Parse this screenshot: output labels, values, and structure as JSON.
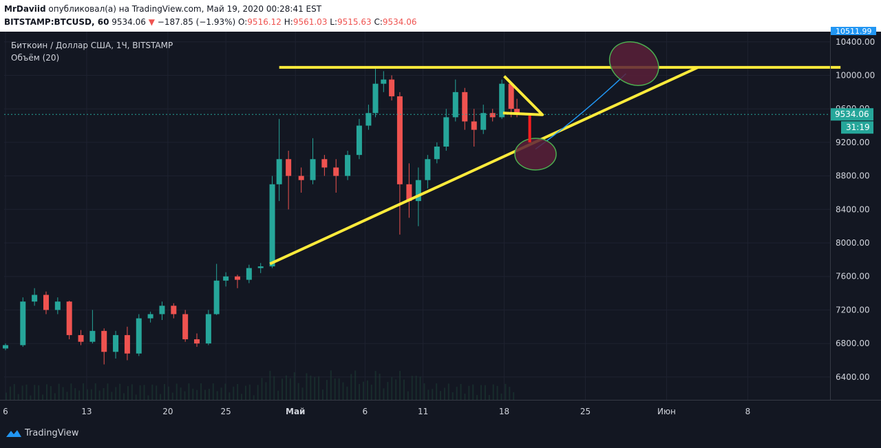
{
  "header": {
    "author": "MrDaviid",
    "published_text": "опубликовал(а) на TradingView.com, Май 19, 2020 00:28:41 EST",
    "symbol": "BITSTAMP:BTCUSD, 60",
    "last_price": "9534.06",
    "change": "−187.85 (−1.93%)",
    "o_label": "O:",
    "o_value": "9516.12",
    "h_label": "H:",
    "h_value": "9561.03",
    "l_label": "L:",
    "l_value": "9515.63",
    "c_label": "C:",
    "c_value": "9534.06"
  },
  "legend": {
    "title": "Биткоин / Доллар США, 1Ч, BITSTAMP",
    "volume": "Объём (20)"
  },
  "price_axis": {
    "top_badge": "10511.99",
    "current_price": "9534.06",
    "countdown": "31:19"
  },
  "footer": {
    "brand": "TradingView"
  },
  "colors": {
    "background": "#131722",
    "up_candle": "#26a69a",
    "down_candle": "#ef5350",
    "trendline": "#ffeb3b",
    "ellipse_stroke": "#4caf50",
    "ellipse_fill": "#5a2038",
    "forecast_curve": "#2196f3",
    "arrow": "#ff1f1f",
    "price_line": "#26a69a",
    "top_badge": "#2196f3"
  },
  "chart_data": {
    "type": "candlestick",
    "title": "Биткоин / Доллар США, 1Ч, BITSTAMP",
    "xlabel": "",
    "ylabel": "",
    "x_tick_labels": [
      "6",
      "13",
      "20",
      "25",
      "Май",
      "6",
      "11",
      "18",
      "25",
      "Июн",
      "8"
    ],
    "x_tick_days": [
      6,
      13,
      20,
      25,
      31,
      37,
      42,
      49,
      56,
      63,
      70
    ],
    "y_ticks": [
      6400,
      6800,
      7200,
      7600,
      8000,
      8400,
      8800,
      9200,
      9600,
      10000,
      10400
    ],
    "y_tick_labels": [
      "6400.00",
      "6800.00",
      "7200.00",
      "7600.00",
      "8000.00",
      "8400.00",
      "8800.00",
      "9200.00",
      "9600.00",
      "10000.00",
      "10400.00"
    ],
    "current_price": 9534.06,
    "series": [
      {
        "name": "BTCUSD",
        "points": [
          {
            "day": 6.0,
            "open": 6740,
            "high": 6800,
            "low": 6720,
            "close": 6780
          },
          {
            "day": 7.5,
            "open": 6780,
            "high": 7350,
            "low": 6760,
            "close": 7300
          },
          {
            "day": 8.5,
            "open": 7300,
            "high": 7460,
            "low": 7250,
            "close": 7380
          },
          {
            "day": 9.5,
            "open": 7380,
            "high": 7420,
            "low": 7150,
            "close": 7200
          },
          {
            "day": 10.5,
            "open": 7200,
            "high": 7350,
            "low": 7150,
            "close": 7300
          },
          {
            "day": 11.5,
            "open": 7300,
            "high": 7310,
            "low": 6850,
            "close": 6900
          },
          {
            "day": 12.5,
            "open": 6900,
            "high": 6960,
            "low": 6780,
            "close": 6820
          },
          {
            "day": 13.5,
            "open": 6820,
            "high": 7200,
            "low": 6800,
            "close": 6950
          },
          {
            "day": 14.5,
            "open": 6950,
            "high": 6980,
            "low": 6550,
            "close": 6700
          },
          {
            "day": 15.5,
            "open": 6700,
            "high": 6950,
            "low": 6620,
            "close": 6900
          },
          {
            "day": 16.5,
            "open": 6900,
            "high": 7000,
            "low": 6600,
            "close": 6680
          },
          {
            "day": 17.5,
            "open": 6680,
            "high": 7150,
            "low": 6650,
            "close": 7100
          },
          {
            "day": 18.5,
            "open": 7100,
            "high": 7180,
            "low": 7050,
            "close": 7150
          },
          {
            "day": 19.5,
            "open": 7150,
            "high": 7300,
            "low": 7080,
            "close": 7250
          },
          {
            "day": 20.5,
            "open": 7250,
            "high": 7280,
            "low": 7100,
            "close": 7150
          },
          {
            "day": 21.5,
            "open": 7150,
            "high": 7200,
            "low": 6820,
            "close": 6850
          },
          {
            "day": 22.5,
            "open": 6850,
            "high": 6920,
            "low": 6760,
            "close": 6800
          },
          {
            "day": 23.5,
            "open": 6800,
            "high": 7200,
            "low": 6780,
            "close": 7150
          },
          {
            "day": 24.2,
            "open": 7150,
            "high": 7750,
            "low": 7140,
            "close": 7550
          },
          {
            "day": 25.0,
            "open": 7550,
            "high": 7650,
            "low": 7480,
            "close": 7600
          },
          {
            "day": 26.0,
            "open": 7600,
            "high": 7620,
            "low": 7460,
            "close": 7560
          },
          {
            "day": 27.0,
            "open": 7560,
            "high": 7740,
            "low": 7520,
            "close": 7700
          },
          {
            "day": 28.0,
            "open": 7700,
            "high": 7760,
            "low": 7640,
            "close": 7720
          },
          {
            "day": 29.0,
            "open": 7720,
            "high": 8800,
            "low": 7700,
            "close": 8700
          },
          {
            "day": 29.6,
            "open": 8700,
            "high": 9480,
            "low": 8500,
            "close": 9000
          },
          {
            "day": 30.4,
            "open": 9000,
            "high": 9100,
            "low": 8400,
            "close": 8800
          },
          {
            "day": 31.5,
            "open": 8800,
            "high": 8900,
            "low": 8600,
            "close": 8750
          },
          {
            "day": 32.5,
            "open": 8750,
            "high": 9250,
            "low": 8700,
            "close": 9000
          },
          {
            "day": 33.5,
            "open": 9000,
            "high": 9050,
            "low": 8800,
            "close": 8900
          },
          {
            "day": 34.5,
            "open": 8900,
            "high": 9000,
            "low": 8600,
            "close": 8800
          },
          {
            "day": 35.5,
            "open": 8800,
            "high": 9100,
            "low": 8750,
            "close": 9050
          },
          {
            "day": 36.5,
            "open": 9050,
            "high": 9480,
            "low": 9000,
            "close": 9400
          },
          {
            "day": 37.3,
            "open": 9400,
            "high": 9650,
            "low": 9350,
            "close": 9550
          },
          {
            "day": 37.9,
            "open": 9550,
            "high": 10080,
            "low": 9500,
            "close": 9900
          },
          {
            "day": 38.6,
            "open": 9900,
            "high": 10050,
            "low": 9800,
            "close": 9950
          },
          {
            "day": 39.3,
            "open": 9950,
            "high": 10000,
            "low": 9700,
            "close": 9750
          },
          {
            "day": 40.0,
            "open": 9750,
            "high": 9800,
            "low": 8100,
            "close": 8700
          },
          {
            "day": 40.8,
            "open": 8700,
            "high": 8950,
            "low": 8300,
            "close": 8500
          },
          {
            "day": 41.6,
            "open": 8500,
            "high": 8900,
            "low": 8200,
            "close": 8750
          },
          {
            "day": 42.4,
            "open": 8750,
            "high": 9050,
            "low": 8650,
            "close": 9000
          },
          {
            "day": 43.2,
            "open": 9000,
            "high": 9200,
            "low": 8950,
            "close": 9150
          },
          {
            "day": 44.0,
            "open": 9150,
            "high": 9600,
            "low": 9100,
            "close": 9500
          },
          {
            "day": 44.8,
            "open": 9500,
            "high": 9950,
            "low": 9450,
            "close": 9800
          },
          {
            "day": 45.6,
            "open": 9800,
            "high": 9850,
            "low": 9350,
            "close": 9450
          },
          {
            "day": 46.4,
            "open": 9450,
            "high": 9600,
            "low": 9150,
            "close": 9350
          },
          {
            "day": 47.2,
            "open": 9350,
            "high": 9650,
            "low": 9300,
            "close": 9550
          },
          {
            "day": 48.0,
            "open": 9550,
            "high": 9600,
            "low": 9450,
            "close": 9500
          },
          {
            "day": 48.8,
            "open": 9500,
            "high": 9950,
            "low": 9480,
            "close": 9900
          },
          {
            "day": 49.6,
            "open": 9900,
            "high": 9920,
            "low": 9500,
            "close": 9600
          },
          {
            "day": 50.1,
            "open": 9600,
            "high": 9720,
            "low": 9500,
            "close": 9534
          }
        ]
      }
    ],
    "annotations": {
      "resistance": {
        "from": {
          "day": 29.6,
          "price": 10095
        },
        "to": {
          "day": 78,
          "price": 10095
        }
      },
      "support": {
        "from": {
          "day": 28.8,
          "price": 7750
        },
        "to": {
          "day": 65.7,
          "price": 10095
        }
      },
      "pennant": [
        {
          "day": 49.0,
          "price": 9990
        },
        {
          "day": 52.3,
          "price": 9530
        },
        {
          "day": 48.9,
          "price": 9550
        }
      ],
      "drop_arrow": {
        "day": 51.2,
        "from_price": 9520,
        "to_price": 9200
      },
      "target_low": {
        "day": 51.7,
        "price": 9060
      },
      "target_high": {
        "day": 60.2,
        "price": 10140
      },
      "forecast_curve": [
        {
          "day": 51.7,
          "price": 9120
        },
        {
          "day": 55.5,
          "price": 9500
        },
        {
          "day": 59.5,
          "price": 10020
        }
      ]
    }
  }
}
